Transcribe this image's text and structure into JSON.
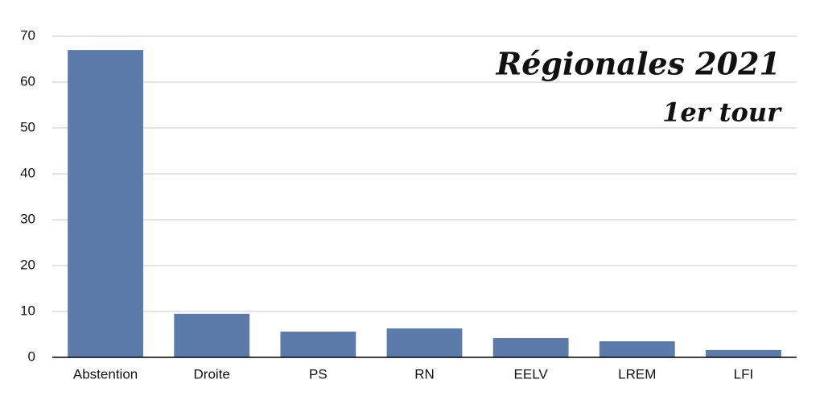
{
  "chart_data": {
    "type": "bar",
    "title": "Régionales 2021",
    "subtitle": "1er tour",
    "categories": [
      "Abstention",
      "Droite",
      "PS",
      "RN",
      "EELV",
      "LREM",
      "LFI"
    ],
    "values": [
      67,
      9.5,
      5.6,
      6.3,
      4.2,
      3.5,
      1.6
    ],
    "color": "#5b7bab",
    "ylim": [
      0,
      70
    ],
    "yticks": [
      0,
      10,
      20,
      30,
      40,
      50,
      60,
      70
    ],
    "grid": true
  }
}
